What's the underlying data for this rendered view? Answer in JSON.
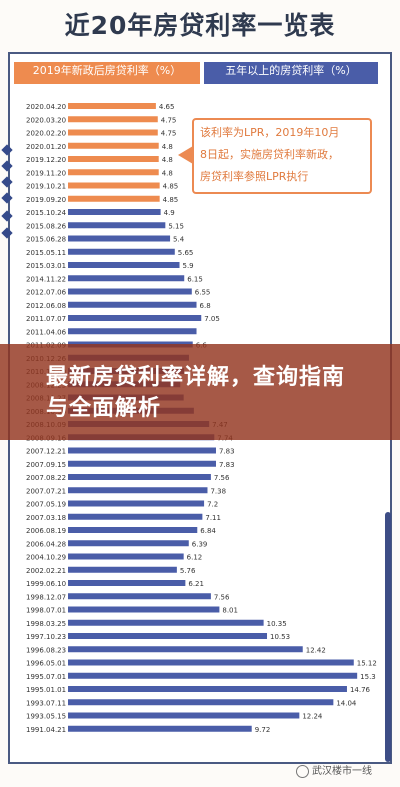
{
  "title": "近20年房贷利率一览表",
  "legend": {
    "orange": "2019年新政后房贷利率（%）",
    "blue": "五年以上的房贷利率（%）"
  },
  "colors": {
    "orange": "#ee8b4f",
    "blue": "#4a5da8",
    "banner": "#93351e"
  },
  "note_lines": [
    "该利率为LPR，2019年10月",
    "8日起，实施房贷利率新政，",
    "房贷利率参照LPR执行"
  ],
  "banner": {
    "text": "最新房贷利率详解，查询指南与全面解析"
  },
  "watermark": "武汉楼市一线",
  "chart_data": {
    "type": "bar",
    "orientation": "horizontal",
    "title": "近20年房贷利率一览表",
    "categories": [
      "2020.04.20",
      "2020.03.20",
      "2020.02.20",
      "2020.01.20",
      "2019.12.20",
      "2019.11.20",
      "2019.10.21",
      "2019.09.20",
      "2015.10.24",
      "2015.08.26",
      "2015.06.28",
      "2015.05.11",
      "2015.03.01",
      "2014.11.22",
      "2012.07.06",
      "2012.06.08",
      "2011.07.07",
      "2011.04.06",
      "2011.02.09",
      "2010.12.26",
      "2010.10.20",
      "2008.12.23",
      "2008.11.27",
      "2008.10.30",
      "2008.10.09",
      "2008.09.16",
      "2007.12.21",
      "2007.09.15",
      "2007.08.22",
      "2007.07.21",
      "2007.05.19",
      "2007.03.18",
      "2006.08.19",
      "2006.04.28",
      "2004.10.29",
      "2002.02.21",
      "1999.06.10",
      "1998.12.07",
      "1998.07.01",
      "1998.03.25",
      "1997.10.23",
      "1996.08.23",
      "1996.05.01",
      "1995.07.01",
      "1995.01.01",
      "1993.07.11",
      "1993.05.15",
      "1991.04.21"
    ],
    "values": [
      4.65,
      4.75,
      4.75,
      4.8,
      4.8,
      4.8,
      4.85,
      4.85,
      4.9,
      5.15,
      5.4,
      5.65,
      5.9,
      6.15,
      6.55,
      6.8,
      7.05,
      6.8,
      6.6,
      6.4,
      6.14,
      5.94,
      6.12,
      6.66,
      7.47,
      7.74,
      7.83,
      7.83,
      7.56,
      7.38,
      7.2,
      7.11,
      6.84,
      6.39,
      6.12,
      5.76,
      6.21,
      7.56,
      8.01,
      10.35,
      10.53,
      12.42,
      15.12,
      15.3,
      14.76,
      14.04,
      12.24,
      9.72
    ],
    "value_labels": [
      "4.65",
      "4.75",
      "4.75",
      "4.8",
      "4.8",
      "4.8",
      "4.85",
      "4.85",
      "4.9",
      "5.15",
      "5.4",
      "5.65",
      "5.9",
      "6.15",
      "6.55",
      "6.8",
      "7.05",
      "",
      "6.6",
      "",
      "",
      "",
      "",
      "",
      "7.47",
      "7.74",
      "7.83",
      "7.83",
      "7.56",
      "7.38",
      "7.2",
      "7.11",
      "6.84",
      "6.39",
      "6.12",
      "5.76",
      "6.21",
      "7.56",
      "8.01",
      "10.35",
      "10.53",
      "12.42",
      "15.12",
      "15.3",
      "14.76",
      "14.04",
      "12.24",
      "9.72"
    ],
    "series_split": 8,
    "xlim": [
      0,
      16
    ]
  }
}
